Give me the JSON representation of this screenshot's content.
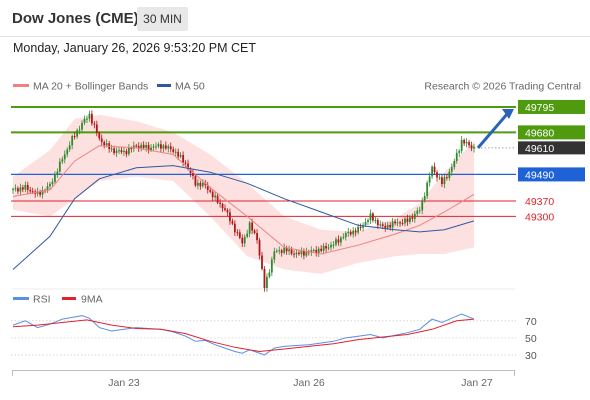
{
  "header": {
    "title": "Dow Jones (CME)",
    "timeframe": "30 MIN",
    "datetime": "Monday, January 26, 2026 9:53:20 PM CET"
  },
  "colors": {
    "resistance": "#4f9a0e",
    "current": "#333333",
    "pivot": "#1f62d6",
    "support": "#e0222d",
    "ma20": "#f08080",
    "band_fill": "#fde0e0",
    "ma50": "#2c5aa0",
    "rsi": "#5b8fe6",
    "rsi_ma": "#e0222d",
    "candle_up": "#2f8a2f",
    "candle_down": "#b31414",
    "arrow": "#2a63b8"
  },
  "chart_data": [
    {
      "type": "candlestick",
      "title": "Dow Jones (CME)",
      "legend": [
        "MA 20 + Bollinger Bands",
        "MA 50"
      ],
      "legend_position": "top-left",
      "credit": "Research © 2026 Trading Central",
      "ylim": [
        48990,
        49840
      ],
      "x_ticks": [
        "Jan 23",
        "Jan 26",
        "Jan 27"
      ],
      "levels": [
        {
          "label": "49795",
          "value": 49795,
          "kind": "resistance"
        },
        {
          "label": "49680",
          "value": 49680,
          "kind": "resistance"
        },
        {
          "label": "49610",
          "value": 49610,
          "kind": "current"
        },
        {
          "label": "49490",
          "value": 49490,
          "kind": "pivot"
        },
        {
          "label": "49370",
          "value": 49370,
          "kind": "support"
        },
        {
          "label": "49300",
          "value": 49300,
          "kind": "support"
        }
      ],
      "forecast_arrow": {
        "from": 49610,
        "to": 49795
      },
      "waypoints": [
        [
          0,
          49420
        ],
        [
          5,
          49430
        ],
        [
          10,
          49400
        ],
        [
          15,
          49440
        ],
        [
          20,
          49560
        ],
        [
          24,
          49650
        ],
        [
          28,
          49720
        ],
        [
          31,
          49760
        ],
        [
          35,
          49650
        ],
        [
          40,
          49600
        ],
        [
          45,
          49590
        ],
        [
          50,
          49620
        ],
        [
          55,
          49610
        ],
        [
          60,
          49620
        ],
        [
          65,
          49600
        ],
        [
          70,
          49540
        ],
        [
          74,
          49450
        ],
        [
          78,
          49440
        ],
        [
          82,
          49380
        ],
        [
          86,
          49330
        ],
        [
          90,
          49240
        ],
        [
          93,
          49180
        ],
        [
          96,
          49260
        ],
        [
          99,
          49200
        ],
        [
          102,
          48980
        ],
        [
          106,
          49140
        ],
        [
          110,
          49150
        ],
        [
          115,
          49130
        ],
        [
          120,
          49140
        ],
        [
          125,
          49150
        ],
        [
          130,
          49175
        ],
        [
          135,
          49220
        ],
        [
          140,
          49240
        ],
        [
          145,
          49300
        ],
        [
          150,
          49250
        ],
        [
          155,
          49270
        ],
        [
          160,
          49280
        ],
        [
          165,
          49330
        ],
        [
          170,
          49520
        ],
        [
          174,
          49450
        ],
        [
          178,
          49520
        ],
        [
          182,
          49640
        ],
        [
          187,
          49610
        ]
      ],
      "ma20": [
        [
          0,
          49390
        ],
        [
          15,
          49420
        ],
        [
          25,
          49550
        ],
        [
          35,
          49620
        ],
        [
          50,
          49610
        ],
        [
          65,
          49580
        ],
        [
          80,
          49430
        ],
        [
          95,
          49300
        ],
        [
          110,
          49160
        ],
        [
          125,
          49130
        ],
        [
          140,
          49170
        ],
        [
          155,
          49220
        ],
        [
          165,
          49260
        ],
        [
          175,
          49320
        ],
        [
          187,
          49400
        ]
      ],
      "bollinger_upper": [
        [
          0,
          49480
        ],
        [
          15,
          49600
        ],
        [
          25,
          49740
        ],
        [
          35,
          49760
        ],
        [
          50,
          49730
        ],
        [
          65,
          49680
        ],
        [
          80,
          49580
        ],
        [
          95,
          49450
        ],
        [
          110,
          49300
        ],
        [
          125,
          49240
        ],
        [
          140,
          49230
        ],
        [
          155,
          49290
        ],
        [
          165,
          49360
        ],
        [
          175,
          49500
        ],
        [
          187,
          49640
        ]
      ],
      "bollinger_lower": [
        [
          0,
          49330
        ],
        [
          15,
          49300
        ],
        [
          25,
          49380
        ],
        [
          35,
          49460
        ],
        [
          50,
          49480
        ],
        [
          65,
          49460
        ],
        [
          80,
          49300
        ],
        [
          95,
          49120
        ],
        [
          110,
          49060
        ],
        [
          125,
          49040
        ],
        [
          140,
          49090
        ],
        [
          155,
          49120
        ],
        [
          165,
          49130
        ],
        [
          175,
          49130
        ],
        [
          187,
          49160
        ]
      ],
      "ma50": [
        [
          0,
          49060
        ],
        [
          15,
          49210
        ],
        [
          25,
          49380
        ],
        [
          35,
          49470
        ],
        [
          50,
          49520
        ],
        [
          65,
          49530
        ],
        [
          80,
          49500
        ],
        [
          95,
          49450
        ],
        [
          110,
          49380
        ],
        [
          125,
          49320
        ],
        [
          140,
          49260
        ],
        [
          155,
          49240
        ],
        [
          165,
          49230
        ],
        [
          175,
          49240
        ],
        [
          187,
          49280
        ]
      ]
    },
    {
      "type": "line",
      "legend": [
        "RSI",
        "9MA"
      ],
      "legend_position": "top-left",
      "ylim": [
        10,
        85
      ],
      "y_ticks": [
        70,
        50,
        30
      ],
      "series": [
        {
          "name": "RSI",
          "points": [
            [
              0,
              65
            ],
            [
              5,
              70
            ],
            [
              10,
              62
            ],
            [
              15,
              66
            ],
            [
              20,
              72
            ],
            [
              24,
              74
            ],
            [
              28,
              76
            ],
            [
              31,
              73
            ],
            [
              35,
              62
            ],
            [
              40,
              58
            ],
            [
              45,
              60
            ],
            [
              50,
              62
            ],
            [
              55,
              61
            ],
            [
              60,
              60
            ],
            [
              65,
              57
            ],
            [
              70,
              52
            ],
            [
              74,
              46
            ],
            [
              78,
              47
            ],
            [
              82,
              42
            ],
            [
              86,
              38
            ],
            [
              90,
              34
            ],
            [
              93,
              32
            ],
            [
              96,
              36
            ],
            [
              99,
              33
            ],
            [
              102,
              30
            ],
            [
              106,
              38
            ],
            [
              110,
              40
            ],
            [
              115,
              41
            ],
            [
              120,
              42
            ],
            [
              125,
              44
            ],
            [
              130,
              46
            ],
            [
              135,
              50
            ],
            [
              140,
              52
            ],
            [
              145,
              54
            ],
            [
              150,
              50
            ],
            [
              155,
              53
            ],
            [
              160,
              56
            ],
            [
              165,
              60
            ],
            [
              170,
              72
            ],
            [
              174,
              68
            ],
            [
              178,
              73
            ],
            [
              182,
              78
            ],
            [
              187,
              72
            ]
          ]
        },
        {
          "name": "9MA",
          "points": [
            [
              0,
              63
            ],
            [
              10,
              65
            ],
            [
              20,
              68
            ],
            [
              30,
              71
            ],
            [
              40,
              65
            ],
            [
              50,
              61
            ],
            [
              60,
              60
            ],
            [
              70,
              55
            ],
            [
              80,
              46
            ],
            [
              90,
              39
            ],
            [
              100,
              34
            ],
            [
              110,
              37
            ],
            [
              120,
              40
            ],
            [
              130,
              43
            ],
            [
              140,
              48
            ],
            [
              150,
              51
            ],
            [
              160,
              54
            ],
            [
              170,
              60
            ],
            [
              180,
              70
            ],
            [
              187,
              72
            ]
          ]
        }
      ]
    }
  ]
}
